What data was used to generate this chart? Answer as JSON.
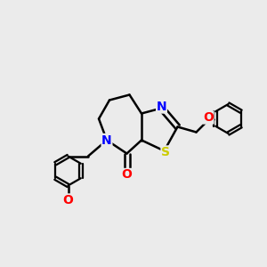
{
  "background_color": "#ebebeb",
  "bond_color": "#000000",
  "bond_width": 1.8,
  "atom_colors": {
    "N": "#0000ff",
    "S": "#cccc00",
    "O": "#ff0000",
    "C": "#000000"
  },
  "font_size": 9,
  "figsize": [
    3.0,
    3.0
  ],
  "dpi": 100
}
